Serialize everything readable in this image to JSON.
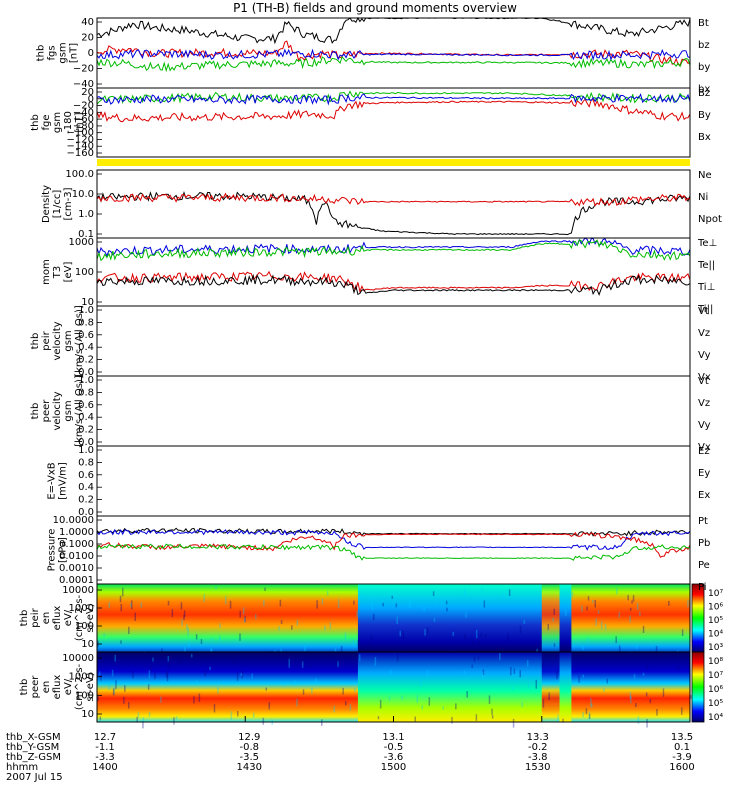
{
  "chart_data": {
    "type": "line",
    "title": "P1 (TH-B) fields and ground moments overview",
    "date": "2007 Jul 15",
    "x_axis": {
      "ticks": [
        "1400",
        "1430",
        "1500",
        "1530",
        "1600"
      ],
      "rows": [
        {
          "label": "thb_X-GSM",
          "values": [
            "12.7",
            "12.9",
            "13.1",
            "13.3",
            "13.5"
          ]
        },
        {
          "label": "thb_Y-GSM",
          "values": [
            "-1.1",
            "-0.8",
            "-0.5",
            "-0.2",
            "0.1"
          ]
        },
        {
          "label": "thb_Z-GSM",
          "values": [
            "-3.3",
            "-3.5",
            "-3.6",
            "-3.8",
            "-3.9"
          ]
        },
        {
          "label": "hhmm",
          "values": [
            "1400",
            "1430",
            "1500",
            "1530",
            "1600"
          ]
        }
      ]
    },
    "panels": [
      {
        "id": "fgs",
        "ylabel": [
          "thb",
          "fgs",
          "gsm",
          "[nT]"
        ],
        "ylim": [
          -40,
          45
        ],
        "ticks": [
          "40",
          "20",
          "0",
          "−20",
          "−40"
        ],
        "legend": [
          {
            "name": "Bt",
            "color": "#000000"
          },
          {
            "name": "bz",
            "color": "#dd0000"
          },
          {
            "name": "by",
            "color": "#00bb00"
          },
          {
            "name": "bx",
            "color": "#0000dd"
          }
        ],
        "series": [
          {
            "name": "Bt",
            "color": "#000000",
            "x": [
              0,
              3,
              6,
              10,
              15,
              20,
              25,
              30,
              32,
              35,
              40,
              42,
              45,
              50,
              60,
              75,
              90,
              100
            ],
            "y": [
              25,
              30,
              38,
              33,
              30,
              25,
              20,
              20,
              38,
              25,
              18,
              45,
              45,
              45,
              45,
              45,
              25,
              40
            ]
          },
          {
            "name": "bz",
            "color": "#dd0000",
            "x": [
              0,
              5,
              10,
              20,
              30,
              32,
              34,
              38,
              41,
              45,
              50,
              70,
              90,
              95,
              100
            ],
            "y": [
              5,
              8,
              2,
              3,
              2,
              15,
              -2,
              2,
              -1,
              2,
              2,
              0,
              2,
              -5,
              -10
            ]
          },
          {
            "name": "by",
            "color": "#00bb00",
            "x": [
              0,
              5,
              10,
              20,
              30,
              35,
              40,
              42,
              45,
              50,
              70,
              88,
              92,
              100
            ],
            "y": [
              -8,
              -10,
              -15,
              -12,
              -10,
              -10,
              -5,
              -5,
              -8,
              -9,
              -9,
              -10,
              -12,
              -8
            ]
          },
          {
            "name": "bx",
            "color": "#0000dd",
            "x": [
              0,
              10,
              20,
              30,
              36,
              40,
              50,
              70,
              90,
              95,
              100
            ],
            "y": [
              0,
              2,
              0,
              1,
              2,
              0,
              1,
              0,
              0,
              1,
              2
            ]
          }
        ]
      },
      {
        "id": "fge",
        "ylabel": [
          "thb",
          "fge",
          "gsm",
          "-180",
          "[nT]"
        ],
        "ylim": [
          -180,
          20
        ],
        "ticks": [
          "20",
          "0",
          "−20",
          "−40",
          "−60",
          "−80",
          "−100",
          "−120",
          "−140",
          "−160"
        ],
        "legend": [
          {
            "name": "Bz",
            "color": "#dd0000"
          },
          {
            "name": "By",
            "color": "#00bb00"
          },
          {
            "name": "Bx",
            "color": "#0000dd"
          }
        ],
        "series": [
          {
            "name": "Bz",
            "color": "#dd0000",
            "x": [
              0,
              5,
              10,
              20,
              30,
              36,
              40,
              42,
              45,
              50,
              60,
              70,
              85,
              90,
              95,
              100
            ],
            "y": [
              -60,
              -68,
              -66,
              -64,
              -62,
              -55,
              -60,
              -30,
              -25,
              -22,
              -20,
              -20,
              -25,
              -45,
              -60,
              -65
            ]
          },
          {
            "name": "By",
            "color": "#00bb00",
            "x": [
              0,
              10,
              20,
              30,
              40,
              42,
              50,
              70,
              90,
              100
            ],
            "y": [
              -15,
              -10,
              -5,
              -10,
              -8,
              5,
              5,
              5,
              -10,
              -8
            ]
          },
          {
            "name": "Bx",
            "color": "#0000dd",
            "x": [
              0,
              10,
              20,
              30,
              40,
              42,
              50,
              70,
              90,
              100
            ],
            "y": [
              -15,
              -12,
              -15,
              -12,
              -15,
              -8,
              -8,
              -10,
              -10,
              -12
            ]
          }
        ]
      },
      {
        "id": "density",
        "ylabel": [
          "Density",
          "[1/cc]",
          "[cm-3]"
        ],
        "log": true,
        "ylim": [
          0.1,
          100
        ],
        "ticks": [
          "100.0",
          "10.0",
          "1.0",
          "0.1"
        ],
        "legend": [
          {
            "name": "Ne",
            "color": "#dd0000"
          },
          {
            "name": "Ni",
            "color": "#000000"
          },
          {
            "name": "Npot",
            "color": "#0000dd"
          }
        ],
        "series": [
          {
            "name": "Ni",
            "color": "#000000",
            "x": [
              0,
              10,
              25,
              35,
              37,
              38,
              40,
              42,
              44,
              48,
              60,
              70,
              80,
              85,
              88,
              90,
              100
            ],
            "y": [
              6,
              7,
              7,
              5,
              0.5,
              4,
              0.5,
              0.4,
              0.3,
              0.2,
              0.15,
              0.15,
              0.15,
              4,
              4,
              4,
              6
            ]
          },
          {
            "name": "Ne",
            "color": "#dd0000",
            "x": [
              0,
              10,
              30,
              40,
              44,
              50,
              70,
              80,
              88,
              90,
              100
            ],
            "y": [
              6,
              6,
              6,
              5,
              4,
              4,
              4,
              4,
              4,
              5,
              6
            ]
          }
        ]
      },
      {
        "id": "temp",
        "ylabel": [
          "mom",
          "T3",
          "[eV]"
        ],
        "log": true,
        "ylim": [
          5,
          2000
        ],
        "ticks": [
          "1000",
          "100",
          "10"
        ],
        "legend": [
          {
            "name": "Te⊥",
            "color": "#dd0000"
          },
          {
            "name": "Te||",
            "color": "#000000"
          },
          {
            "name": "Ti⊥",
            "color": "#dd0000"
          },
          {
            "name": "Ti||",
            "color": "#00bb00"
          }
        ],
        "series": [
          {
            "name": "Ti",
            "color": "#0000dd",
            "x": [
              0,
              10,
              30,
              40,
              45,
              50,
              60,
              70,
              75,
              80,
              85,
              90,
              100
            ],
            "y": [
              600,
              700,
              800,
              700,
              900,
              900,
              900,
              900,
              1500,
              1500,
              1500,
              700,
              600
            ]
          },
          {
            "name": "Ti||",
            "color": "#00bb00",
            "x": [
              0,
              10,
              30,
              40,
              45,
              50,
              60,
              70,
              75,
              80,
              85,
              90,
              100
            ],
            "y": [
              400,
              500,
              600,
              600,
              700,
              700,
              700,
              700,
              1200,
              1200,
              1200,
              500,
              400
            ]
          },
          {
            "name": "Te",
            "color": "#dd0000",
            "x": [
              0,
              10,
              30,
              40,
              45,
              50,
              60,
              70,
              75,
              80,
              85,
              90,
              100
            ],
            "y": [
              60,
              60,
              70,
              60,
              20,
              25,
              25,
              25,
              30,
              30,
              30,
              60,
              60
            ]
          },
          {
            "name": "Te||",
            "color": "#000000",
            "x": [
              0,
              10,
              30,
              40,
              45,
              50,
              60,
              70,
              75,
              80,
              85,
              90,
              100
            ],
            "y": [
              45,
              45,
              50,
              40,
              15,
              20,
              20,
              20,
              20,
              20,
              20,
              50,
              45
            ]
          }
        ]
      },
      {
        "id": "peir_vel",
        "ylabel": [
          "thb",
          "peir",
          "velocity",
          "gsm",
          "[km/s (All Qs)]"
        ],
        "ylim": [
          0,
          1
        ],
        "ticks": [
          "1.0",
          "0.8",
          "0.6",
          "0.4",
          "0.2",
          "0.0"
        ],
        "legend": [
          {
            "name": "Vt",
            "color": "#000000"
          },
          {
            "name": "Vz",
            "color": "#dd0000"
          },
          {
            "name": "Vy",
            "color": "#00bb00"
          },
          {
            "name": "Vx",
            "color": "#0000dd"
          }
        ],
        "series": []
      },
      {
        "id": "peer_vel",
        "ylabel": [
          "thb",
          "peer",
          "velocity",
          "gsm",
          "[km/s (All Qs)]"
        ],
        "ylim": [
          0,
          1
        ],
        "ticks": [
          "1.0",
          "0.8",
          "0.6",
          "0.4",
          "0.2",
          "0.0"
        ],
        "legend": [
          {
            "name": "Vt",
            "color": "#000000"
          },
          {
            "name": "Vz",
            "color": "#dd0000"
          },
          {
            "name": "Vy",
            "color": "#00bb00"
          },
          {
            "name": "Vx",
            "color": "#0000dd"
          }
        ],
        "series": []
      },
      {
        "id": "efield",
        "ylabel": [
          "E=-VxB",
          "[mV/m]"
        ],
        "ylim": [
          0,
          1
        ],
        "ticks": [
          "1.0",
          "0.8",
          "0.6",
          "0.4",
          "0.2",
          "0.0"
        ],
        "legend": [
          {
            "name": "Ez",
            "color": "#dd0000"
          },
          {
            "name": "Ey",
            "color": "#00bb00"
          },
          {
            "name": "Ex",
            "color": "#0000dd"
          }
        ],
        "series": []
      },
      {
        "id": "pressure",
        "ylabel": [
          "Pressure",
          "[nPa]"
        ],
        "log": true,
        "ylim": [
          0.0001,
          10
        ],
        "ticks": [
          "10.0000",
          "1.0000",
          "0.1000",
          "0.0100",
          "0.0010",
          "0.0001"
        ],
        "legend": [
          {
            "name": "Pt",
            "color": "#000000"
          },
          {
            "name": "Pb",
            "color": "#dd0000"
          },
          {
            "name": "Pe",
            "color": "#00bb00"
          },
          {
            "name": "Pi",
            "color": "#0000dd"
          }
        ],
        "series": [
          {
            "name": "Pt",
            "color": "#000000",
            "x": [
              0,
              10,
              30,
              40,
              45,
              80,
              88,
              92,
              100
            ],
            "y": [
              0.8,
              0.9,
              0.7,
              0.8,
              0.5,
              0.5,
              0.5,
              0.6,
              0.7
            ]
          },
          {
            "name": "Pi",
            "color": "#0000dd",
            "x": [
              0,
              10,
              30,
              40,
              42,
              45,
              80,
              88,
              92,
              100
            ],
            "y": [
              0.6,
              0.7,
              0.6,
              0.6,
              0.1,
              0.05,
              0.05,
              0.05,
              0.5,
              0.6
            ]
          },
          {
            "name": "Pb",
            "color": "#dd0000",
            "x": [
              0,
              10,
              20,
              30,
              36,
              40,
              42,
              50,
              80,
              88,
              95,
              100
            ],
            "y": [
              0.08,
              0.05,
              0.06,
              0.04,
              0.3,
              0.05,
              0.4,
              0.45,
              0.45,
              0.3,
              0.01,
              0.05
            ]
          },
          {
            "name": "Pe",
            "color": "#00bb00",
            "x": [
              0,
              10,
              30,
              40,
              44,
              50,
              80,
              88,
              92,
              100
            ],
            "y": [
              0.05,
              0.06,
              0.05,
              0.05,
              0.008,
              0.008,
              0.008,
              0.01,
              0.05,
              0.05
            ]
          }
        ]
      },
      {
        "id": "peir_en",
        "type": "heatmap",
        "ylabel": [
          "thb",
          "peir",
          "en",
          "eflux",
          "eV/",
          "(cm^2-s-",
          "sr-eV)"
        ],
        "ticks": [
          "10000",
          "1000",
          "100",
          "10"
        ],
        "colorbar": [
          "10⁷",
          "10⁶",
          "10⁵",
          "10⁴",
          "10³"
        ]
      },
      {
        "id": "peer_en",
        "type": "heatmap",
        "ylabel": [
          "thb",
          "peer",
          "en",
          "eflux",
          "eV/",
          "(cm^2-s-",
          "sr-eV)"
        ],
        "ticks": [
          "10000",
          "1000",
          "100",
          "10"
        ],
        "colorbar": [
          "10⁸",
          "10⁷",
          "10⁶",
          "10⁵",
          "10⁴"
        ]
      }
    ],
    "yellow_bar_color": "#ffee00"
  }
}
